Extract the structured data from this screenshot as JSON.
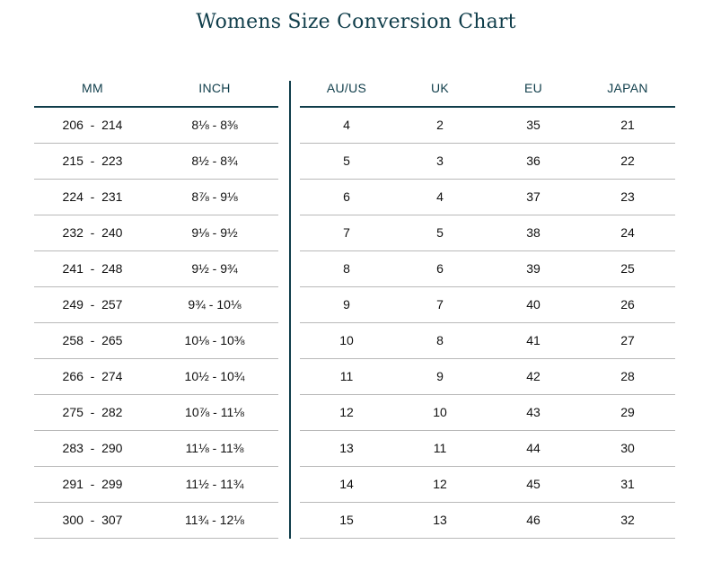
{
  "title": "Womens Size Conversion Chart",
  "colors": {
    "accent": "#0f3d4a",
    "row_rule": "#b9b9b9"
  },
  "left_table": {
    "headers": [
      "MM",
      "INCH"
    ],
    "rows": [
      [
        "206  -  214",
        "8⅛ - 8⅜"
      ],
      [
        "215  -  223",
        "8½ - 8¾"
      ],
      [
        "224  -  231",
        "8⅞ - 9⅛"
      ],
      [
        "232  -  240",
        "9⅛ - 9½"
      ],
      [
        "241  -  248",
        "9½ - 9¾"
      ],
      [
        "249  -  257",
        "9¾ - 10⅛"
      ],
      [
        "258  -  265",
        "10⅛ - 10⅜"
      ],
      [
        "266  -  274",
        "10½ - 10¾"
      ],
      [
        "275  -  282",
        "10⅞ - 11⅛"
      ],
      [
        "283  -  290",
        "11⅛ - 11⅜"
      ],
      [
        "291  -  299",
        "11½ - 11¾"
      ],
      [
        "300  -  307",
        "11¾ - 12⅛"
      ]
    ]
  },
  "right_table": {
    "headers": [
      "AU/US",
      "UK",
      "EU",
      "JAPAN"
    ],
    "rows": [
      [
        "4",
        "2",
        "35",
        "21"
      ],
      [
        "5",
        "3",
        "36",
        "22"
      ],
      [
        "6",
        "4",
        "37",
        "23"
      ],
      [
        "7",
        "5",
        "38",
        "24"
      ],
      [
        "8",
        "6",
        "39",
        "25"
      ],
      [
        "9",
        "7",
        "40",
        "26"
      ],
      [
        "10",
        "8",
        "41",
        "27"
      ],
      [
        "11",
        "9",
        "42",
        "28"
      ],
      [
        "12",
        "10",
        "43",
        "29"
      ],
      [
        "13",
        "11",
        "44",
        "30"
      ],
      [
        "14",
        "12",
        "45",
        "31"
      ],
      [
        "15",
        "13",
        "46",
        "32"
      ]
    ]
  }
}
